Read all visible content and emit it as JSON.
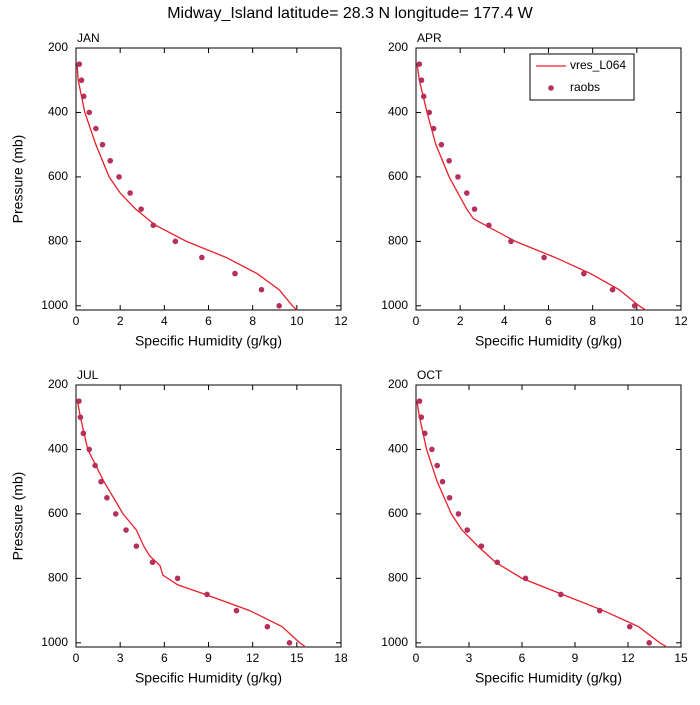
{
  "title": "Midway_Island  latitude= 28.3 N longitude= 177.4 W",
  "chart_data": [
    {
      "type": "line",
      "title": "JAN",
      "xlabel": "Specific Humidity (g/kg)",
      "ylabel": "Pressure (mb)",
      "xlim": [
        0,
        12
      ],
      "xticks": [
        0,
        2,
        4,
        6,
        8,
        10,
        12
      ],
      "ylim": [
        200,
        1013
      ],
      "yticks": [
        200,
        400,
        600,
        800,
        1000
      ],
      "yreverse": true,
      "legend": false,
      "series": [
        {
          "name": "vres_L064",
          "color": "#e8202a",
          "style": "line",
          "y": [
            250,
            300,
            400,
            500,
            600,
            650,
            700,
            750,
            800,
            850,
            900,
            950,
            1000,
            1013
          ],
          "x": [
            0.05,
            0.1,
            0.4,
            0.9,
            1.5,
            2.0,
            2.7,
            3.6,
            5.0,
            6.8,
            8.2,
            9.2,
            9.8,
            10.0
          ]
        },
        {
          "name": "raobs",
          "color": "#b5305a",
          "style": "marker",
          "y": [
            250,
            300,
            350,
            400,
            450,
            500,
            550,
            600,
            650,
            700,
            750,
            800,
            850,
            900,
            950,
            1000
          ],
          "x": [
            0.15,
            0.25,
            0.35,
            0.6,
            0.9,
            1.2,
            1.55,
            1.95,
            2.45,
            2.95,
            3.5,
            4.5,
            5.7,
            7.2,
            8.4,
            9.2
          ]
        }
      ]
    },
    {
      "type": "line",
      "title": "APR",
      "xlabel": "Specific Humidity (g/kg)",
      "xlim": [
        0,
        12
      ],
      "xticks": [
        0,
        2,
        4,
        6,
        8,
        10,
        12
      ],
      "ylim": [
        200,
        1013
      ],
      "yticks": [
        200,
        400,
        600,
        800,
        1000
      ],
      "yreverse": true,
      "legend": "top-right",
      "series": [
        {
          "name": "vres_L064",
          "color": "#e8202a",
          "style": "line",
          "y": [
            250,
            300,
            400,
            500,
            600,
            700,
            730,
            800,
            850,
            900,
            950,
            1000,
            1013
          ],
          "x": [
            0.05,
            0.15,
            0.5,
            0.9,
            1.5,
            2.3,
            2.6,
            4.5,
            6.3,
            7.9,
            9.2,
            10.1,
            10.4
          ]
        },
        {
          "name": "raobs",
          "color": "#b5305a",
          "style": "marker",
          "y": [
            250,
            300,
            350,
            400,
            450,
            500,
            550,
            600,
            650,
            700,
            750,
            800,
            850,
            900,
            950,
            1000
          ],
          "x": [
            0.15,
            0.25,
            0.35,
            0.6,
            0.8,
            1.15,
            1.5,
            1.9,
            2.3,
            2.65,
            3.3,
            4.3,
            5.8,
            7.6,
            8.9,
            9.9
          ]
        }
      ]
    },
    {
      "type": "line",
      "title": "JUL",
      "xlabel": "Specific Humidity (g/kg)",
      "ylabel": "Pressure (mb)",
      "xlim": [
        0,
        18
      ],
      "xticks": [
        0,
        3,
        6,
        9,
        12,
        15,
        18
      ],
      "ylim": [
        200,
        1013
      ],
      "yticks": [
        200,
        400,
        600,
        800,
        1000
      ],
      "yreverse": true,
      "legend": false,
      "series": [
        {
          "name": "vres_L064",
          "color": "#e8202a",
          "style": "line",
          "y": [
            250,
            300,
            400,
            500,
            600,
            650,
            700,
            730,
            760,
            790,
            820,
            850,
            900,
            950,
            1000,
            1013
          ],
          "x": [
            0.1,
            0.3,
            0.8,
            1.9,
            3.2,
            4.1,
            4.6,
            5.0,
            5.7,
            5.9,
            6.9,
            8.8,
            11.8,
            14.0,
            15.2,
            15.6
          ]
        },
        {
          "name": "raobs",
          "color": "#b5305a",
          "style": "marker",
          "y": [
            250,
            300,
            350,
            400,
            450,
            500,
            550,
            600,
            650,
            700,
            750,
            800,
            850,
            900,
            950,
            1000
          ],
          "x": [
            0.2,
            0.3,
            0.5,
            0.9,
            1.3,
            1.7,
            2.1,
            2.7,
            3.4,
            4.1,
            5.2,
            6.9,
            8.9,
            10.9,
            13.0,
            14.5
          ]
        }
      ]
    },
    {
      "type": "line",
      "title": "OCT",
      "xlabel": "Specific Humidity (g/kg)",
      "xlim": [
        0,
        15
      ],
      "xticks": [
        0,
        3,
        6,
        9,
        12,
        15
      ],
      "ylim": [
        200,
        1013
      ],
      "yticks": [
        200,
        400,
        600,
        800,
        1000
      ],
      "yreverse": true,
      "legend": false,
      "series": [
        {
          "name": "vres_L064",
          "color": "#e8202a",
          "style": "line",
          "y": [
            250,
            300,
            400,
            500,
            600,
            650,
            700,
            750,
            800,
            850,
            900,
            950,
            1000,
            1013
          ],
          "x": [
            0.05,
            0.2,
            0.6,
            1.2,
            2.0,
            2.6,
            3.5,
            4.5,
            6.0,
            8.3,
            10.6,
            12.6,
            13.8,
            14.2
          ]
        },
        {
          "name": "raobs",
          "color": "#b5305a",
          "style": "marker",
          "y": [
            250,
            300,
            350,
            400,
            450,
            500,
            550,
            600,
            650,
            700,
            750,
            800,
            850,
            900,
            950,
            1000
          ],
          "x": [
            0.2,
            0.3,
            0.5,
            0.9,
            1.2,
            1.5,
            1.9,
            2.4,
            2.9,
            3.7,
            4.6,
            6.2,
            8.2,
            10.4,
            12.1,
            13.2
          ]
        }
      ]
    }
  ]
}
